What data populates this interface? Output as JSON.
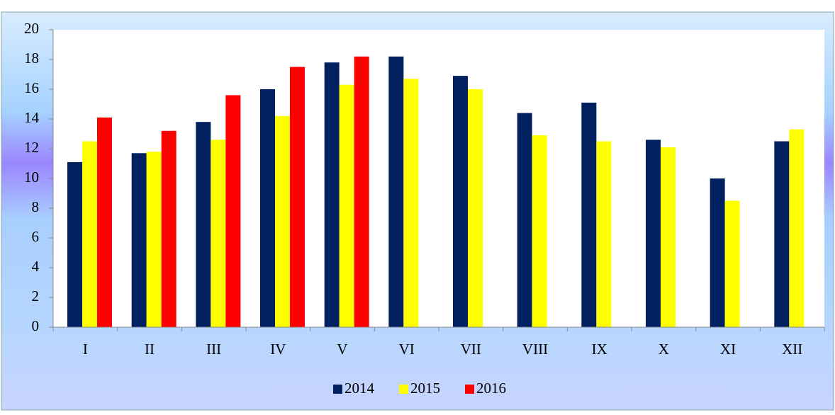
{
  "chart_data": {
    "type": "bar",
    "categories": [
      "I",
      "II",
      "III",
      "IV",
      "V",
      "VI",
      "VII",
      "VIII",
      "IX",
      "X",
      "XI",
      "XII"
    ],
    "series": [
      {
        "name": "2014",
        "color": "#002060",
        "values": [
          11.1,
          11.7,
          13.8,
          16.0,
          17.8,
          18.2,
          16.9,
          14.4,
          15.1,
          12.6,
          10.0,
          12.5
        ]
      },
      {
        "name": "2015",
        "color": "#ffff00",
        "values": [
          12.5,
          11.8,
          12.6,
          14.2,
          16.3,
          16.7,
          16.0,
          12.9,
          12.5,
          12.1,
          8.5,
          13.3
        ]
      },
      {
        "name": "2016",
        "color": "#ff0000",
        "values": [
          14.1,
          13.2,
          15.6,
          17.5,
          18.2,
          null,
          null,
          null,
          null,
          null,
          null,
          null
        ]
      }
    ],
    "ylim": [
      0,
      20
    ],
    "yticks": [
      0,
      2,
      4,
      6,
      8,
      10,
      12,
      14,
      16,
      18,
      20
    ],
    "grid": false,
    "legend": "bottom"
  }
}
